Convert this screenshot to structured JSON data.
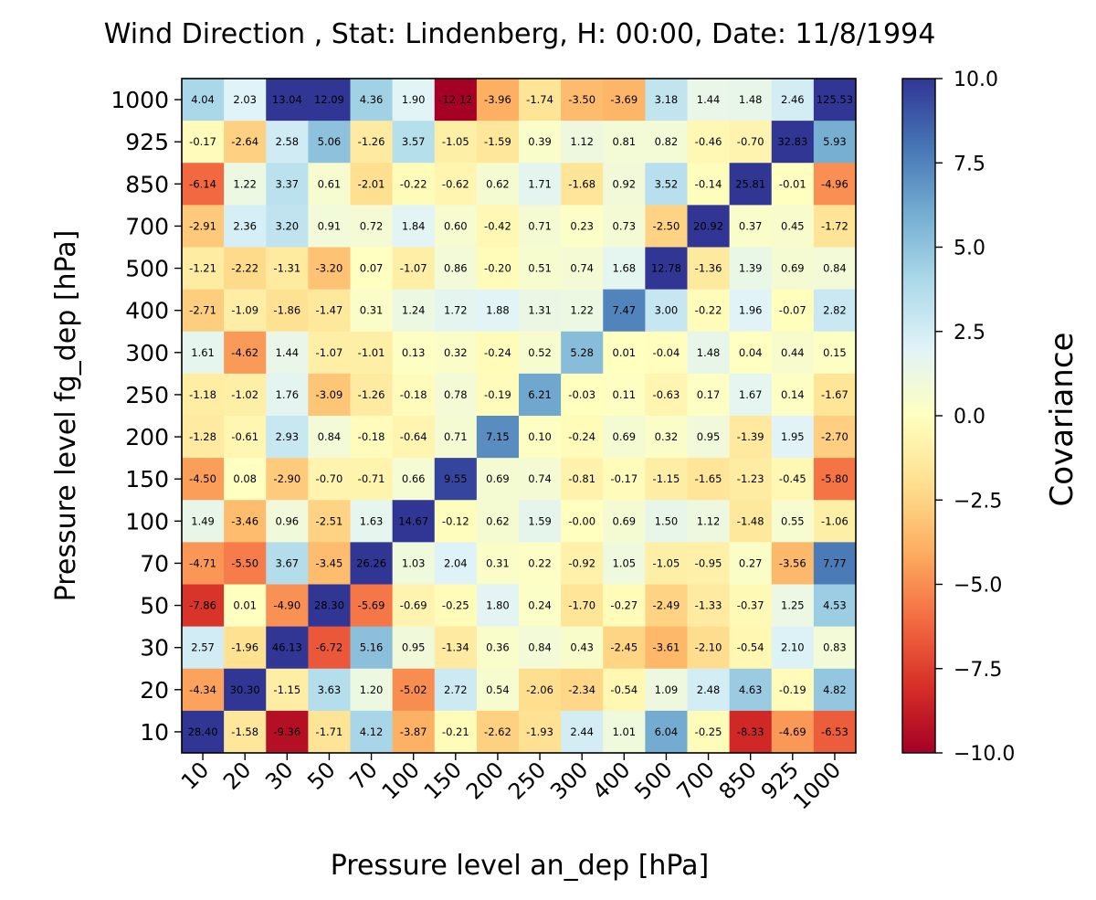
{
  "chart_data": {
    "type": "heatmap",
    "title": "Wind Direction , Stat: Lindenberg, H: 00:00, Date: 11/8/1994",
    "xlabel": "Pressure level an_dep [hPa]",
    "ylabel": "Pressure level fg_dep [hPa]",
    "colorbar_label": "Covariance",
    "colorbar_ticks": [
      "10.0",
      "7.5",
      "5.0",
      "2.5",
      "0.0",
      "−2.5",
      "−5.0",
      "−7.5",
      "−10.0"
    ],
    "colorbar_tick_values": [
      10,
      7.5,
      5,
      2.5,
      0,
      -2.5,
      -5,
      -7.5,
      -10
    ],
    "vmin": -10,
    "vmax": 10,
    "colormap": "RdYlBu",
    "x_categories": [
      "10",
      "20",
      "30",
      "50",
      "70",
      "100",
      "150",
      "200",
      "250",
      "300",
      "400",
      "500",
      "700",
      "850",
      "925",
      "1000"
    ],
    "y_categories": [
      "1000",
      "925",
      "850",
      "700",
      "500",
      "400",
      "300",
      "250",
      "200",
      "150",
      "100",
      "70",
      "50",
      "30",
      "20",
      "10"
    ],
    "values": [
      [
        "4.04",
        "2.03",
        "13.04",
        "12.09",
        "4.36",
        "1.90",
        "-12.12",
        "-3.96",
        "-1.74",
        "-3.50",
        "-3.69",
        "3.18",
        "1.44",
        "1.48",
        "2.46",
        "125.53"
      ],
      [
        "-0.17",
        "-2.64",
        "2.58",
        "5.06",
        "-1.26",
        "3.57",
        "-1.05",
        "-1.59",
        "0.39",
        "1.12",
        "0.81",
        "0.82",
        "-0.46",
        "-0.70",
        "32.83",
        "5.93"
      ],
      [
        "-6.14",
        "1.22",
        "3.37",
        "0.61",
        "-2.01",
        "-0.22",
        "-0.62",
        "0.62",
        "1.71",
        "-1.68",
        "0.92",
        "3.52",
        "-0.14",
        "25.81",
        "-0.01",
        "-4.96"
      ],
      [
        "-2.91",
        "2.36",
        "3.20",
        "0.91",
        "0.72",
        "1.84",
        "0.60",
        "-0.42",
        "0.71",
        "0.23",
        "0.73",
        "-2.50",
        "20.92",
        "0.37",
        "0.45",
        "-1.72"
      ],
      [
        "-1.21",
        "-2.22",
        "-1.31",
        "-3.20",
        "0.07",
        "-1.07",
        "0.86",
        "-0.20",
        "0.51",
        "0.74",
        "1.68",
        "12.78",
        "-1.36",
        "1.39",
        "0.69",
        "0.84"
      ],
      [
        "-2.71",
        "-1.09",
        "-1.86",
        "-1.47",
        "0.31",
        "1.24",
        "1.72",
        "1.88",
        "1.31",
        "1.22",
        "7.47",
        "3.00",
        "-0.22",
        "1.96",
        "-0.07",
        "2.82"
      ],
      [
        "1.61",
        "-4.62",
        "1.44",
        "-1.07",
        "-1.01",
        "0.13",
        "0.32",
        "-0.24",
        "0.52",
        "5.28",
        "0.01",
        "-0.04",
        "1.48",
        "0.04",
        "0.44",
        "0.15"
      ],
      [
        "-1.18",
        "-1.02",
        "1.76",
        "-3.09",
        "-1.26",
        "-0.18",
        "0.78",
        "-0.19",
        "6.21",
        "-0.03",
        "0.11",
        "-0.63",
        "0.17",
        "1.67",
        "0.14",
        "-1.67"
      ],
      [
        "-1.28",
        "-0.61",
        "2.93",
        "0.84",
        "-0.18",
        "-0.64",
        "0.71",
        "7.15",
        "0.10",
        "-0.24",
        "0.69",
        "0.32",
        "0.95",
        "-1.39",
        "1.95",
        "-2.70"
      ],
      [
        "-4.50",
        "0.08",
        "-2.90",
        "-0.70",
        "-0.71",
        "0.66",
        "9.55",
        "0.69",
        "0.74",
        "-0.81",
        "-0.17",
        "-1.15",
        "-1.65",
        "-1.23",
        "-0.45",
        "-5.80"
      ],
      [
        "1.49",
        "-3.46",
        "0.96",
        "-2.51",
        "1.63",
        "14.67",
        "-0.12",
        "0.62",
        "1.59",
        "-0.00",
        "0.69",
        "1.50",
        "1.12",
        "-1.48",
        "0.55",
        "-1.06"
      ],
      [
        "-4.71",
        "-5.50",
        "3.67",
        "-3.45",
        "26.26",
        "1.03",
        "2.04",
        "0.31",
        "0.22",
        "-0.92",
        "1.05",
        "-1.05",
        "-0.95",
        "0.27",
        "-3.56",
        "7.77"
      ],
      [
        "-7.86",
        "0.01",
        "-4.90",
        "28.30",
        "-5.69",
        "-0.69",
        "-0.25",
        "1.80",
        "0.24",
        "-1.70",
        "-0.27",
        "-2.49",
        "-1.33",
        "-0.37",
        "1.25",
        "4.53"
      ],
      [
        "2.57",
        "-1.96",
        "46.13",
        "-6.72",
        "5.16",
        "0.95",
        "-1.34",
        "0.36",
        "0.84",
        "0.43",
        "-2.45",
        "-3.61",
        "-2.10",
        "-0.54",
        "2.10",
        "0.83"
      ],
      [
        "-4.34",
        "30.30",
        "-1.15",
        "3.63",
        "1.20",
        "-5.02",
        "2.72",
        "0.54",
        "-2.06",
        "-2.34",
        "-0.54",
        "1.09",
        "2.48",
        "4.63",
        "-0.19",
        "4.82"
      ],
      [
        "28.40",
        "-1.58",
        "-9.36",
        "-1.71",
        "4.12",
        "-3.87",
        "-0.21",
        "-2.62",
        "-1.93",
        "2.44",
        "1.01",
        "6.04",
        "-0.25",
        "-8.33",
        "-4.69",
        "-6.53"
      ]
    ]
  }
}
